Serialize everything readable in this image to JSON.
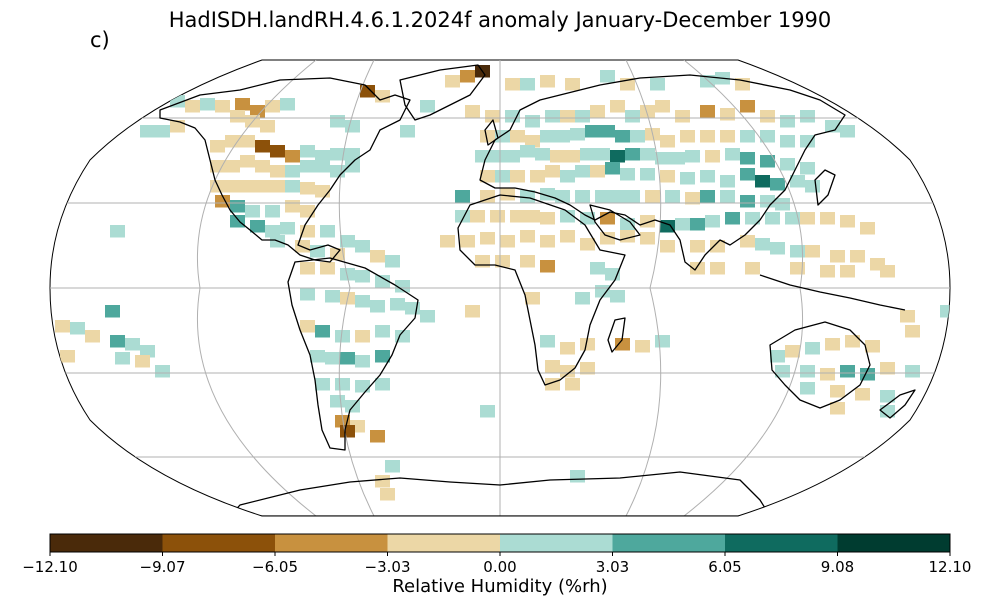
{
  "title": "HadISDH.landRH.4.6.1.2024f anomaly January-December 1990",
  "panel_label": "c)",
  "colorbar": {
    "label": "Relative Humidity (%rh)",
    "ticks": [
      "−12.10",
      "−9.07",
      "−6.05",
      "−3.03",
      "0.00",
      "3.03",
      "6.05",
      "9.08",
      "12.10"
    ],
    "colors": [
      "#4a2a0a",
      "#8c510a",
      "#c8913f",
      "#ecd7a6",
      "#abdcd3",
      "#4ea89d",
      "#0f6b5f",
      "#003c30"
    ]
  },
  "map": {
    "projection": "Robinson",
    "graticule_color": "#b0b0b0",
    "coastline_color": "#000000"
  }
}
